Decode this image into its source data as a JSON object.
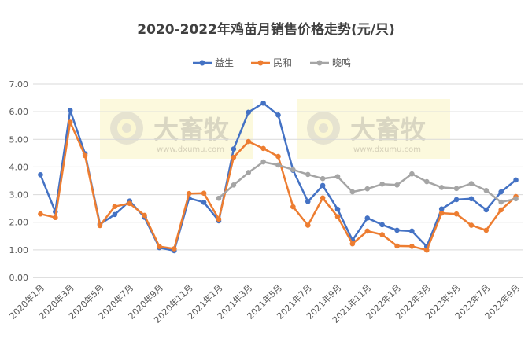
{
  "chart_data": {
    "type": "line",
    "title": "2020-2022年鸡苗月销售价格走势(元/只)",
    "xlabel": "",
    "ylabel": "",
    "ylim": [
      0,
      7
    ],
    "yticks": [
      "0.00",
      "1.00",
      "2.00",
      "3.00",
      "4.00",
      "5.00",
      "6.00",
      "7.00"
    ],
    "x": [
      "2020年1月",
      "2020年2月",
      "2020年3月",
      "2020年4月",
      "2020年5月",
      "2020年6月",
      "2020年7月",
      "2020年8月",
      "2020年9月",
      "2020年10月",
      "2020年11月",
      "2020年12月",
      "2021年1月",
      "2021年2月",
      "2021年3月",
      "2021年4月",
      "2021年5月",
      "2021年6月",
      "2021年7月",
      "2021年8月",
      "2021年9月",
      "2021年10月",
      "2021年11月",
      "2021年12月",
      "2022年1月",
      "2022年2月",
      "2022年3月",
      "2022年4月",
      "2022年5月",
      "2022年6月",
      "2022年7月",
      "2022年8月",
      "2022年9月"
    ],
    "xtick_labels": [
      "2020年1月",
      "2020年3月",
      "2020年5月",
      "2020年7月",
      "2020年9月",
      "2020年11月",
      "2021年1月",
      "2021年3月",
      "2021年5月",
      "2021年7月",
      "2021年9月",
      "2021年11月",
      "2022年1月",
      "2022年3月",
      "2022年5月",
      "2022年7月",
      "2022年9月"
    ],
    "legend_position": "top",
    "grid": "horizontal",
    "series": [
      {
        "name": "益生",
        "color": "#4472C4",
        "values": [
          3.72,
          2.38,
          6.05,
          4.48,
          1.93,
          2.28,
          2.77,
          2.18,
          1.08,
          0.97,
          2.87,
          2.72,
          2.05,
          4.65,
          5.98,
          6.31,
          5.88,
          3.88,
          2.75,
          3.33,
          2.47,
          1.35,
          2.15,
          1.91,
          1.71,
          1.68,
          1.12,
          2.48,
          2.82,
          2.85,
          2.45,
          3.1,
          3.53
        ]
      },
      {
        "name": "民和",
        "color": "#ED7D31",
        "values": [
          2.3,
          2.17,
          5.62,
          4.41,
          1.88,
          2.57,
          2.68,
          2.25,
          1.12,
          1.04,
          3.04,
          3.05,
          2.11,
          4.35,
          4.92,
          4.67,
          4.38,
          2.56,
          1.89,
          2.88,
          2.2,
          1.22,
          1.68,
          1.55,
          1.14,
          1.13,
          0.99,
          2.33,
          2.3,
          1.89,
          1.71,
          2.45,
          2.93
        ]
      },
      {
        "name": "晓鸣",
        "color": "#A5A5A5",
        "values": [
          null,
          null,
          null,
          null,
          null,
          null,
          null,
          null,
          null,
          null,
          null,
          null,
          2.87,
          3.35,
          3.8,
          4.18,
          4.07,
          3.9,
          3.73,
          3.58,
          3.65,
          3.1,
          3.21,
          3.38,
          3.35,
          3.75,
          3.47,
          3.26,
          3.22,
          3.4,
          3.15,
          2.73,
          2.85
        ]
      }
    ],
    "watermark": {
      "brand": "大畜牧",
      "url": "www.dxumu.com"
    }
  }
}
